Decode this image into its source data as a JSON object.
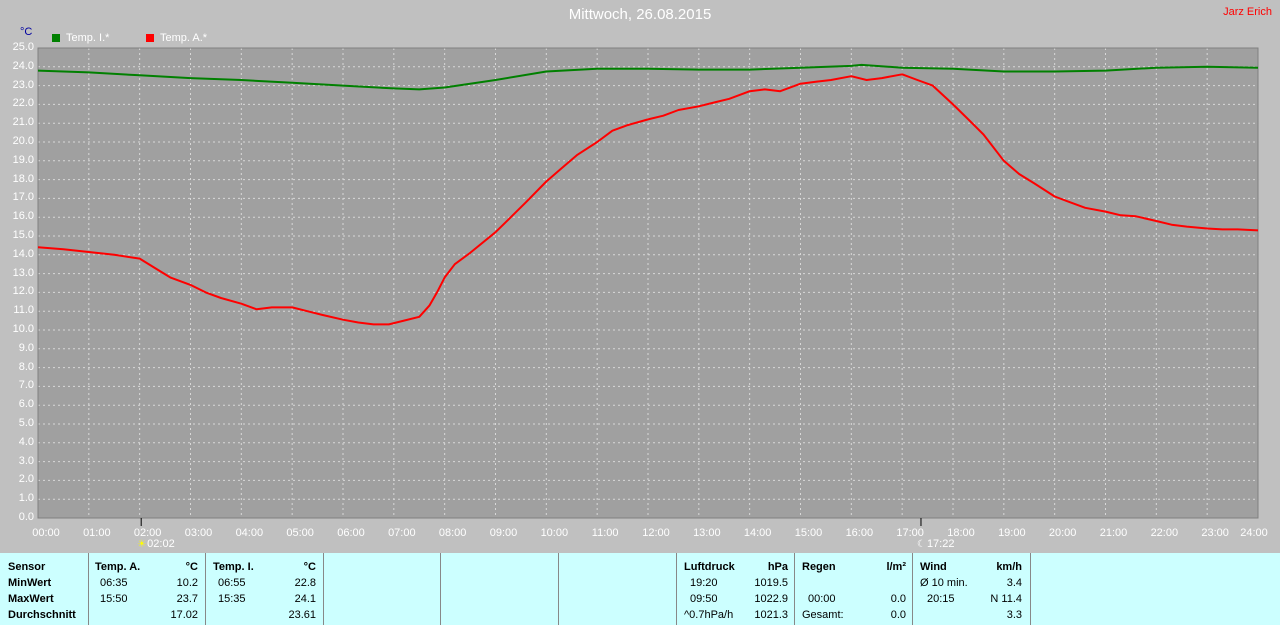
{
  "title": "Mittwoch, 26.08.2015",
  "author": "Jarz Erich",
  "unit": "°C",
  "colors": {
    "background": "#c0c0c0",
    "plot_bg": "#a0a0a0",
    "inside": "#008000",
    "outside": "#ff0000",
    "table_bg": "#ccffff"
  },
  "chart_data": {
    "type": "line",
    "ylim": [
      0,
      25
    ],
    "yticks": [
      "0.0",
      "1.0",
      "2.0",
      "3.0",
      "4.0",
      "5.0",
      "6.0",
      "7.0",
      "8.0",
      "9.0",
      "10.0",
      "11.0",
      "12.0",
      "13.0",
      "14.0",
      "15.0",
      "16.0",
      "17.0",
      "18.0",
      "19.0",
      "20.0",
      "21.0",
      "22.0",
      "23.0",
      "24.0",
      "25.0"
    ],
    "xticks": [
      "00:00",
      "01:00",
      "02:00",
      "03:00",
      "04:00",
      "05:00",
      "06:00",
      "07:00",
      "08:00",
      "09:00",
      "10:00",
      "11:00",
      "12:00",
      "13:00",
      "14:00",
      "15:00",
      "16:00",
      "17:00",
      "18:00",
      "19:00",
      "20:00",
      "21:00",
      "22:00",
      "23:00",
      "24:00"
    ],
    "xlim": [
      0,
      24
    ],
    "grid": true,
    "legend": "top-left",
    "series": [
      {
        "name": "Temp. I.*",
        "color": "#008000",
        "x": [
          0,
          1,
          2,
          3,
          4,
          5,
          6,
          7,
          7.5,
          8,
          9,
          10,
          11,
          12,
          13,
          14,
          15,
          16,
          16.2,
          17,
          18,
          19,
          20,
          21,
          22,
          23,
          24
        ],
        "y": [
          23.8,
          23.7,
          23.55,
          23.4,
          23.3,
          23.15,
          23.0,
          22.85,
          22.8,
          22.9,
          23.3,
          23.75,
          23.9,
          23.9,
          23.85,
          23.85,
          23.95,
          24.05,
          24.1,
          23.95,
          23.9,
          23.75,
          23.75,
          23.8,
          23.95,
          24.0,
          23.95
        ]
      },
      {
        "name": "Temp. A.*",
        "color": "#ff0000",
        "x": [
          0,
          0.5,
          1,
          1.5,
          2,
          2.3,
          2.6,
          3,
          3.3,
          3.6,
          4,
          4.3,
          4.6,
          5,
          5.3,
          5.6,
          6,
          6.3,
          6.6,
          6.9,
          7.2,
          7.5,
          7.7,
          7.85,
          8,
          8.2,
          8.5,
          9,
          9.3,
          9.6,
          10,
          10.3,
          10.6,
          11,
          11.3,
          11.6,
          12,
          12.3,
          12.6,
          13,
          13.3,
          13.6,
          14,
          14.3,
          14.6,
          15,
          15.3,
          15.6,
          16,
          16.3,
          16.6,
          17,
          17.3,
          17.6,
          18,
          18.3,
          18.6,
          19,
          19.3,
          19.6,
          20,
          20.3,
          20.6,
          21,
          21.3,
          21.6,
          22,
          22.3,
          22.6,
          23,
          23.3,
          23.6,
          24
        ],
        "y": [
          14.4,
          14.3,
          14.15,
          14.0,
          13.8,
          13.3,
          12.8,
          12.4,
          12.0,
          11.7,
          11.4,
          11.1,
          11.2,
          11.2,
          11.0,
          10.8,
          10.55,
          10.4,
          10.3,
          10.3,
          10.5,
          10.7,
          11.3,
          12.0,
          12.8,
          13.5,
          14.1,
          15.2,
          16.0,
          16.8,
          17.9,
          18.6,
          19.3,
          20.0,
          20.6,
          20.9,
          21.2,
          21.4,
          21.7,
          21.9,
          22.1,
          22.3,
          22.7,
          22.8,
          22.7,
          23.1,
          23.2,
          23.3,
          23.5,
          23.3,
          23.4,
          23.6,
          23.3,
          23.0,
          22.0,
          21.2,
          20.4,
          19.0,
          18.3,
          17.8,
          17.1,
          16.8,
          16.5,
          16.3,
          16.1,
          16.05,
          15.8,
          15.6,
          15.5,
          15.4,
          15.35,
          15.35,
          15.3
        ]
      }
    ],
    "markers": [
      {
        "time": 2.03,
        "label": "02:02",
        "kind": "sunrise"
      },
      {
        "time": 17.37,
        "label": "17:22",
        "kind": "sunset"
      }
    ]
  },
  "table": {
    "sensor": {
      "header": "Sensor",
      "rows": [
        "MinWert",
        "MaxWert",
        "Durchschnitt"
      ]
    },
    "temp_a": {
      "header": "Temp. A.",
      "unit": "°C",
      "min_time": "06:35",
      "min": "10.2",
      "max_time": "15:50",
      "max": "23.7",
      "avg": "17.02"
    },
    "temp_i": {
      "header": "Temp. I.",
      "unit": "°C",
      "min_time": "06:55",
      "min": "22.8",
      "max_time": "15:35",
      "max": "24.1",
      "avg": "23.61"
    },
    "pressure": {
      "header": "Luftdruck",
      "unit": "hPa",
      "min_time": "19:20",
      "min": "1019.5",
      "max_time": "09:50",
      "max": "1022.9",
      "trend_label": "^0.7hPa/h",
      "current": "1021.3"
    },
    "rain": {
      "header": "Regen",
      "unit": "l/m²",
      "row2_time": "00:00",
      "row2_val": "0.0",
      "total_label": "Gesamt:",
      "total": "0.0"
    },
    "wind": {
      "header": "Wind",
      "unit": "km/h",
      "avg_label": "Ø 10 min.",
      "avg": "3.4",
      "max_time": "20:15",
      "max": "N 11.4",
      "row3": "3.3"
    }
  }
}
